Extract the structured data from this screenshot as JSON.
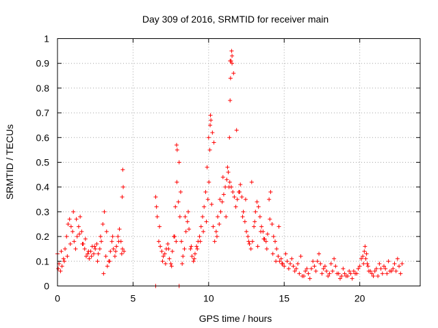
{
  "chart_data": {
    "type": "scatter",
    "title": "Day 309 of 2016, SRMTID for receiver main",
    "xlabel": "GPS time / hours",
    "ylabel": "SRMTID / TECUs",
    "xlim": [
      0,
      24
    ],
    "ylim": [
      0,
      1
    ],
    "grid": true,
    "marker": "+",
    "point_color": "#ff0000",
    "x_ticks": [
      {
        "value": 0,
        "label": "0"
      },
      {
        "value": 5,
        "label": "5"
      },
      {
        "value": 10,
        "label": "10"
      },
      {
        "value": 15,
        "label": "15"
      },
      {
        "value": 20,
        "label": "20"
      }
    ],
    "y_ticks": [
      {
        "value": 0,
        "label": "0"
      },
      {
        "value": 0.1,
        "label": "0.1"
      },
      {
        "value": 0.2,
        "label": "0.2"
      },
      {
        "value": 0.3,
        "label": "0.3"
      },
      {
        "value": 0.4,
        "label": "0.4"
      },
      {
        "value": 0.5,
        "label": "0.5"
      },
      {
        "value": 0.6,
        "label": "0.6"
      },
      {
        "value": 0.7,
        "label": "0.7"
      },
      {
        "value": 0.8,
        "label": "0.8"
      },
      {
        "value": 0.9,
        "label": "0.9"
      },
      {
        "value": 1,
        "label": "1"
      }
    ],
    "series": [
      {
        "name": "SRMTID",
        "x": [
          0.0,
          0.1,
          0.2,
          0.3,
          0.4,
          0.5,
          0.6,
          0.7,
          0.8,
          0.9,
          1.0,
          1.1,
          1.2,
          1.3,
          1.4,
          1.5,
          1.6,
          1.7,
          1.8,
          1.9,
          2.0,
          2.1,
          2.2,
          2.3,
          2.4,
          2.5,
          2.6,
          2.7,
          2.8,
          2.9,
          3.0,
          3.1,
          3.2,
          3.3,
          3.4,
          3.5,
          3.6,
          3.7,
          3.8,
          3.9,
          4.0,
          4.1,
          4.2,
          4.3,
          4.4,
          6.5,
          6.6,
          6.7,
          6.8,
          6.9,
          7.0,
          7.1,
          7.2,
          7.3,
          7.4,
          7.5,
          7.6,
          7.7,
          7.8,
          7.9,
          8.0,
          8.1,
          8.2,
          8.3,
          8.4,
          8.5,
          8.6,
          8.7,
          8.8,
          8.9,
          9.0,
          9.1,
          9.2,
          9.3,
          9.4,
          9.5,
          9.6,
          9.7,
          9.8,
          9.9,
          10.0,
          10.1,
          10.2,
          10.3,
          10.4,
          10.5,
          10.6,
          10.7,
          10.8,
          10.9,
          11.0,
          11.1,
          11.2,
          11.3,
          11.4,
          11.5,
          11.6,
          11.7,
          11.8,
          11.9,
          12.0,
          12.1,
          12.2,
          12.3,
          12.4,
          12.5,
          12.6,
          12.7,
          12.8,
          12.9,
          13.0,
          13.1,
          13.2,
          13.3,
          13.4,
          13.5,
          13.6,
          13.7,
          13.8,
          13.9,
          14.0,
          14.1,
          14.2,
          14.3,
          14.4,
          14.5,
          14.6,
          14.7,
          14.8,
          14.9,
          15.0,
          15.2,
          15.4,
          15.6,
          15.8,
          16.0,
          16.2,
          16.4,
          16.6,
          16.8,
          17.0,
          17.2,
          17.4,
          17.6,
          17.8,
          18.0,
          18.2,
          18.4,
          18.6,
          18.8,
          19.0,
          19.2,
          19.4,
          19.6,
          19.8,
          20.0,
          20.1,
          20.2,
          20.3,
          20.4,
          20.5,
          20.6,
          20.8,
          21.0,
          21.2,
          21.4,
          21.6,
          21.8,
          22.0,
          22.2,
          22.4,
          22.6,
          22.8,
          0.05,
          0.25,
          0.45,
          0.65,
          0.85,
          1.05,
          1.25,
          1.45,
          1.65,
          1.85,
          2.05,
          2.25,
          2.45,
          2.65,
          2.85,
          3.05,
          3.25,
          3.45,
          3.65,
          3.85,
          4.05,
          4.25,
          4.35,
          4.32,
          4.28,
          6.55,
          6.75,
          6.95,
          7.15,
          7.35,
          7.55,
          7.75,
          7.85,
          7.88,
          7.92,
          8.05,
          8.15,
          8.25,
          8.45,
          8.65,
          8.85,
          9.05,
          9.25,
          9.45,
          9.65,
          9.85,
          9.95,
          10.02,
          10.08,
          10.12,
          10.15,
          10.25,
          10.35,
          10.55,
          10.75,
          10.95,
          11.15,
          11.25,
          11.35,
          11.38,
          11.42,
          11.45,
          11.48,
          11.52,
          11.55,
          11.65,
          11.85,
          12.05,
          12.25,
          12.45,
          12.65,
          12.85,
          13.05,
          13.25,
          13.45,
          13.65,
          13.85,
          14.05,
          14.25,
          14.45,
          14.65,
          14.85,
          15.1,
          15.3,
          15.5,
          15.7,
          15.9,
          16.1,
          16.3,
          16.5,
          16.7,
          16.9,
          17.1,
          17.3,
          17.5,
          17.7,
          17.9,
          18.1,
          18.3,
          18.5,
          18.7,
          18.9,
          19.1,
          19.3,
          19.5,
          19.7,
          19.9,
          20.25,
          20.35,
          20.45,
          20.55,
          20.7,
          20.9,
          21.1,
          21.3,
          21.5,
          21.7,
          21.9,
          22.1,
          22.3,
          22.5,
          22.7,
          6.5,
          8.05,
          11.42,
          11.55
        ],
        "y": [
          0.13,
          0.09,
          0.06,
          0.08,
          0.11,
          0.15,
          0.2,
          0.25,
          0.27,
          0.24,
          0.22,
          0.18,
          0.15,
          0.2,
          0.24,
          0.28,
          0.22,
          0.17,
          0.15,
          0.12,
          0.13,
          0.11,
          0.14,
          0.16,
          0.13,
          0.15,
          0.17,
          0.13,
          0.15,
          0.18,
          0.25,
          0.3,
          0.12,
          0.08,
          0.1,
          0.14,
          0.18,
          0.15,
          0.12,
          0.16,
          0.2,
          0.23,
          0.18,
          0.15,
          0.14,
          0.36,
          0.28,
          0.18,
          0.16,
          0.14,
          0.12,
          0.13,
          0.15,
          0.17,
          0.11,
          0.09,
          0.14,
          0.2,
          0.32,
          0.42,
          0.34,
          0.28,
          0.18,
          0.12,
          0.15,
          0.22,
          0.26,
          0.23,
          0.15,
          0.12,
          0.1,
          0.13,
          0.16,
          0.18,
          0.2,
          0.24,
          0.28,
          0.32,
          0.38,
          0.48,
          0.6,
          0.65,
          0.33,
          0.24,
          0.18,
          0.22,
          0.28,
          0.25,
          0.3,
          0.34,
          0.37,
          0.4,
          0.43,
          0.46,
          0.42,
          0.4,
          0.38,
          0.36,
          0.32,
          0.35,
          0.38,
          0.41,
          0.36,
          0.3,
          0.26,
          0.22,
          0.2,
          0.17,
          0.15,
          0.18,
          0.24,
          0.3,
          0.34,
          0.32,
          0.28,
          0.24,
          0.22,
          0.19,
          0.18,
          0.21,
          0.35,
          0.38,
          0.25,
          0.2,
          0.18,
          0.15,
          0.12,
          0.1,
          0.11,
          0.09,
          0.08,
          0.1,
          0.09,
          0.08,
          0.07,
          0.05,
          0.04,
          0.06,
          0.05,
          0.07,
          0.08,
          0.1,
          0.09,
          0.07,
          0.06,
          0.05,
          0.06,
          0.08,
          0.05,
          0.04,
          0.05,
          0.04,
          0.05,
          0.06,
          0.05,
          0.08,
          0.11,
          0.12,
          0.14,
          0.11,
          0.09,
          0.06,
          0.05,
          0.06,
          0.04,
          0.07,
          0.08,
          0.05,
          0.06,
          0.07,
          0.06,
          0.08,
          0.09,
          0.07,
          0.14,
          0.1,
          0.12,
          0.17,
          0.3,
          0.27,
          0.21,
          0.17,
          0.19,
          0.14,
          0.12,
          0.16,
          0.1,
          0.2,
          0.05,
          0.22,
          0.1,
          0.2,
          0.14,
          0.18,
          0.13,
          0.4,
          0.47,
          0.36,
          0.32,
          0.24,
          0.1,
          0.09,
          0.15,
          0.08,
          0.2,
          0.18,
          0.57,
          0.55,
          0.5,
          0.38,
          0.09,
          0.28,
          0.3,
          0.16,
          0.11,
          0.15,
          0.18,
          0.22,
          0.26,
          0.35,
          0.42,
          0.55,
          0.69,
          0.67,
          0.62,
          0.58,
          0.2,
          0.35,
          0.44,
          0.28,
          0.48,
          0.4,
          0.6,
          0.75,
          0.84,
          0.91,
          0.95,
          0.93,
          0.86,
          0.63,
          0.38,
          0.28,
          0.35,
          0.18,
          0.42,
          0.26,
          0.16,
          0.22,
          0.19,
          0.15,
          0.27,
          0.13,
          0.1,
          0.24,
          0.09,
          0.13,
          0.07,
          0.11,
          0.06,
          0.09,
          0.12,
          0.04,
          0.07,
          0.03,
          0.1,
          0.06,
          0.13,
          0.05,
          0.08,
          0.04,
          0.09,
          0.11,
          0.05,
          0.03,
          0.07,
          0.04,
          0.06,
          0.03,
          0.05,
          0.07,
          0.09,
          0.16,
          0.13,
          0.08,
          0.06,
          0.04,
          0.07,
          0.09,
          0.05,
          0.07,
          0.1,
          0.06,
          0.09,
          0.11,
          0.05,
          0.0,
          0.0,
          0.91,
          0.9
        ]
      }
    ]
  }
}
